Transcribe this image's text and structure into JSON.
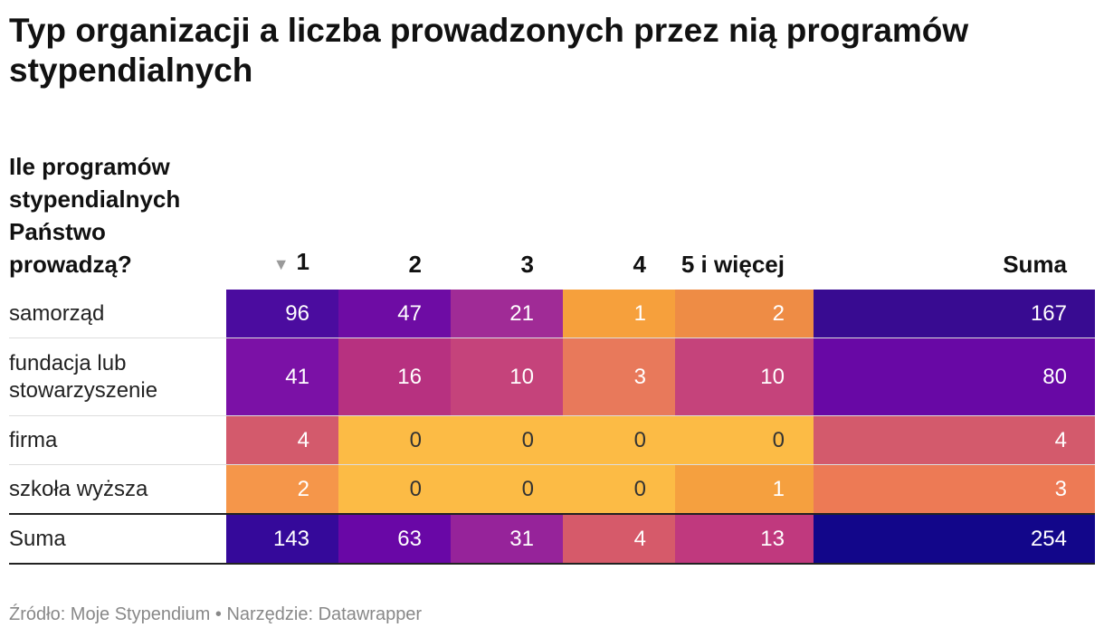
{
  "title": "Typ organizacji a liczba prowadzonych przez nią programów stypendialnych",
  "chart_data": {
    "type": "table",
    "header": {
      "row_label": "Ile programów stypendialnych Państwo prowadzą?",
      "columns": [
        "1",
        "2",
        "3",
        "4",
        "5 i więcej",
        "Suma"
      ],
      "sorted_column": "1",
      "sort_indicator": "▼"
    },
    "rows": [
      {
        "label": "samorząd",
        "values": [
          96,
          47,
          21,
          1,
          2,
          167
        ]
      },
      {
        "label": "fundacja lub stowarzyszenie",
        "values": [
          41,
          16,
          10,
          3,
          10,
          80
        ]
      },
      {
        "label": "firma",
        "values": [
          4,
          0,
          0,
          0,
          0,
          4
        ]
      },
      {
        "label": "szkoła wyższa",
        "values": [
          2,
          0,
          0,
          0,
          1,
          3
        ]
      }
    ],
    "total": {
      "label": "Suma",
      "values": [
        143,
        63,
        31,
        4,
        13,
        254
      ]
    },
    "colors": {
      "samorzad": [
        "#4b0c9f",
        "#6e0ca4",
        "#a02b96",
        "#f6a03c",
        "#ee8c45",
        "#380b91"
      ],
      "fundacja": [
        "#7b11a6",
        "#b73180",
        "#c5437b",
        "#e8795b",
        "#c5437b",
        "#6808a5"
      ],
      "firma": [
        "#d35a6c",
        "#fcbb45",
        "#fcbb45",
        "#fcbb45",
        "#fcbb45",
        "#d35a6c"
      ],
      "szkola": [
        "#f5964a",
        "#fcbb45",
        "#fcbb45",
        "#fcbb45",
        "#f5a03f",
        "#ed7a55"
      ],
      "suma": [
        "#35099a",
        "#6907a6",
        "#96239a",
        "#d65a6a",
        "#c0397e",
        "#12068a"
      ]
    },
    "text_colors": {
      "light": "#ffffff",
      "dark": "#333333"
    }
  },
  "source": "Źródło: Moje Stypendium • Narzędzie: Datawrapper"
}
